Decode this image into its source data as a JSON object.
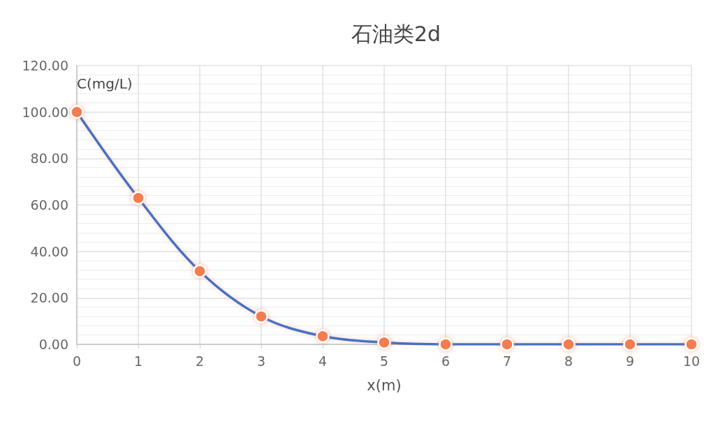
{
  "chart_data": {
    "type": "line",
    "title": "石油类2d",
    "xlabel": "x(m)",
    "ylabel": "C(mg/L)",
    "x": [
      0,
      1,
      2,
      3,
      4,
      5,
      6,
      7,
      8,
      9,
      10
    ],
    "series": [
      {
        "color": "#4472c4",
        "values": [
          100,
          63,
          31.5,
          12,
          3.5,
          0.8,
          0,
          0,
          0,
          0,
          0
        ]
      }
    ],
    "xlim": [
      0,
      10
    ],
    "xticks": [
      0,
      1,
      2,
      3,
      4,
      5,
      6,
      7,
      8,
      9,
      10
    ],
    "ylim": [
      0,
      120
    ],
    "yticks": [
      {
        "value": 0,
        "label": "0.00"
      },
      {
        "value": 20,
        "label": "20.00"
      },
      {
        "value": 40,
        "label": "40.00"
      },
      {
        "value": 60,
        "label": "60.00"
      },
      {
        "value": 80,
        "label": "80.00"
      },
      {
        "value": 100,
        "label": "100.00"
      },
      {
        "value": 120,
        "label": "120.00"
      }
    ],
    "grid": true,
    "marker": "circle",
    "line_style": "solid"
  }
}
